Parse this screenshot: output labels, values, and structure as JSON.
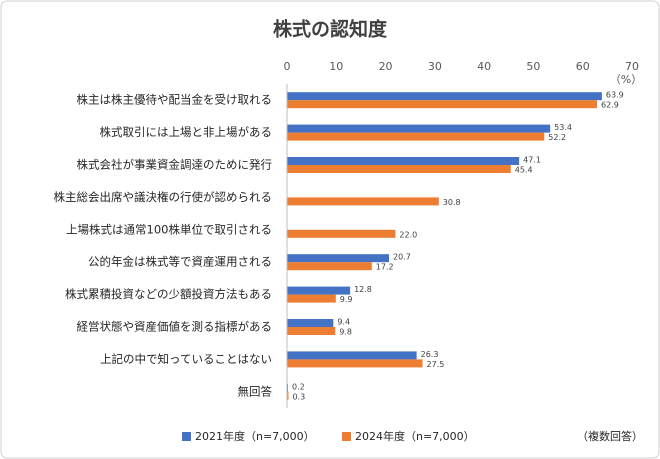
{
  "chart_data": {
    "type": "bar",
    "orientation": "horizontal",
    "title": "株式の認知度",
    "x_label": "（%）",
    "note": "（複数回答）",
    "categories": [
      "株主は株主優待や配当金を受け取れる",
      "株式取引には上場と非上場がある",
      "株式会社が事業資金調達のために発行",
      "株主総会出席や議決権の行使が認められる",
      "上場株式は通常100株単位で取引される",
      "公的年金は株式等で資産運用される",
      "株式累積投資などの少額投資方法もある",
      "経営状態や資産価値を測る指標がある",
      "上記の中で知っていることはない",
      "無回答"
    ],
    "series": [
      {
        "name": "2021年度（n=7,000）",
        "color": "#4472c4",
        "values": [
          63.9,
          53.4,
          47.1,
          null,
          null,
          20.7,
          12.8,
          9.4,
          26.3,
          0.2
        ],
        "value_labels": [
          "63.9",
          "53.4",
          "47.1",
          null,
          null,
          "20.7",
          "12.8",
          "9.4",
          "26.3",
          "0.2"
        ]
      },
      {
        "name": "2024年度（n=7,000）",
        "color": "#ed7d31",
        "values": [
          62.9,
          52.2,
          45.4,
          30.8,
          22.0,
          17.2,
          9.9,
          9.8,
          27.5,
          0.3
        ],
        "value_labels": [
          "62.9",
          "52.2",
          "45.4",
          "30.8",
          "22.0",
          "17.2",
          "9.9",
          "9.8",
          "27.5",
          "0.3"
        ]
      }
    ],
    "xlim": [
      0,
      70
    ],
    "xticks": [
      0,
      10,
      20,
      30,
      40,
      50,
      60,
      70
    ],
    "grid": false
  }
}
